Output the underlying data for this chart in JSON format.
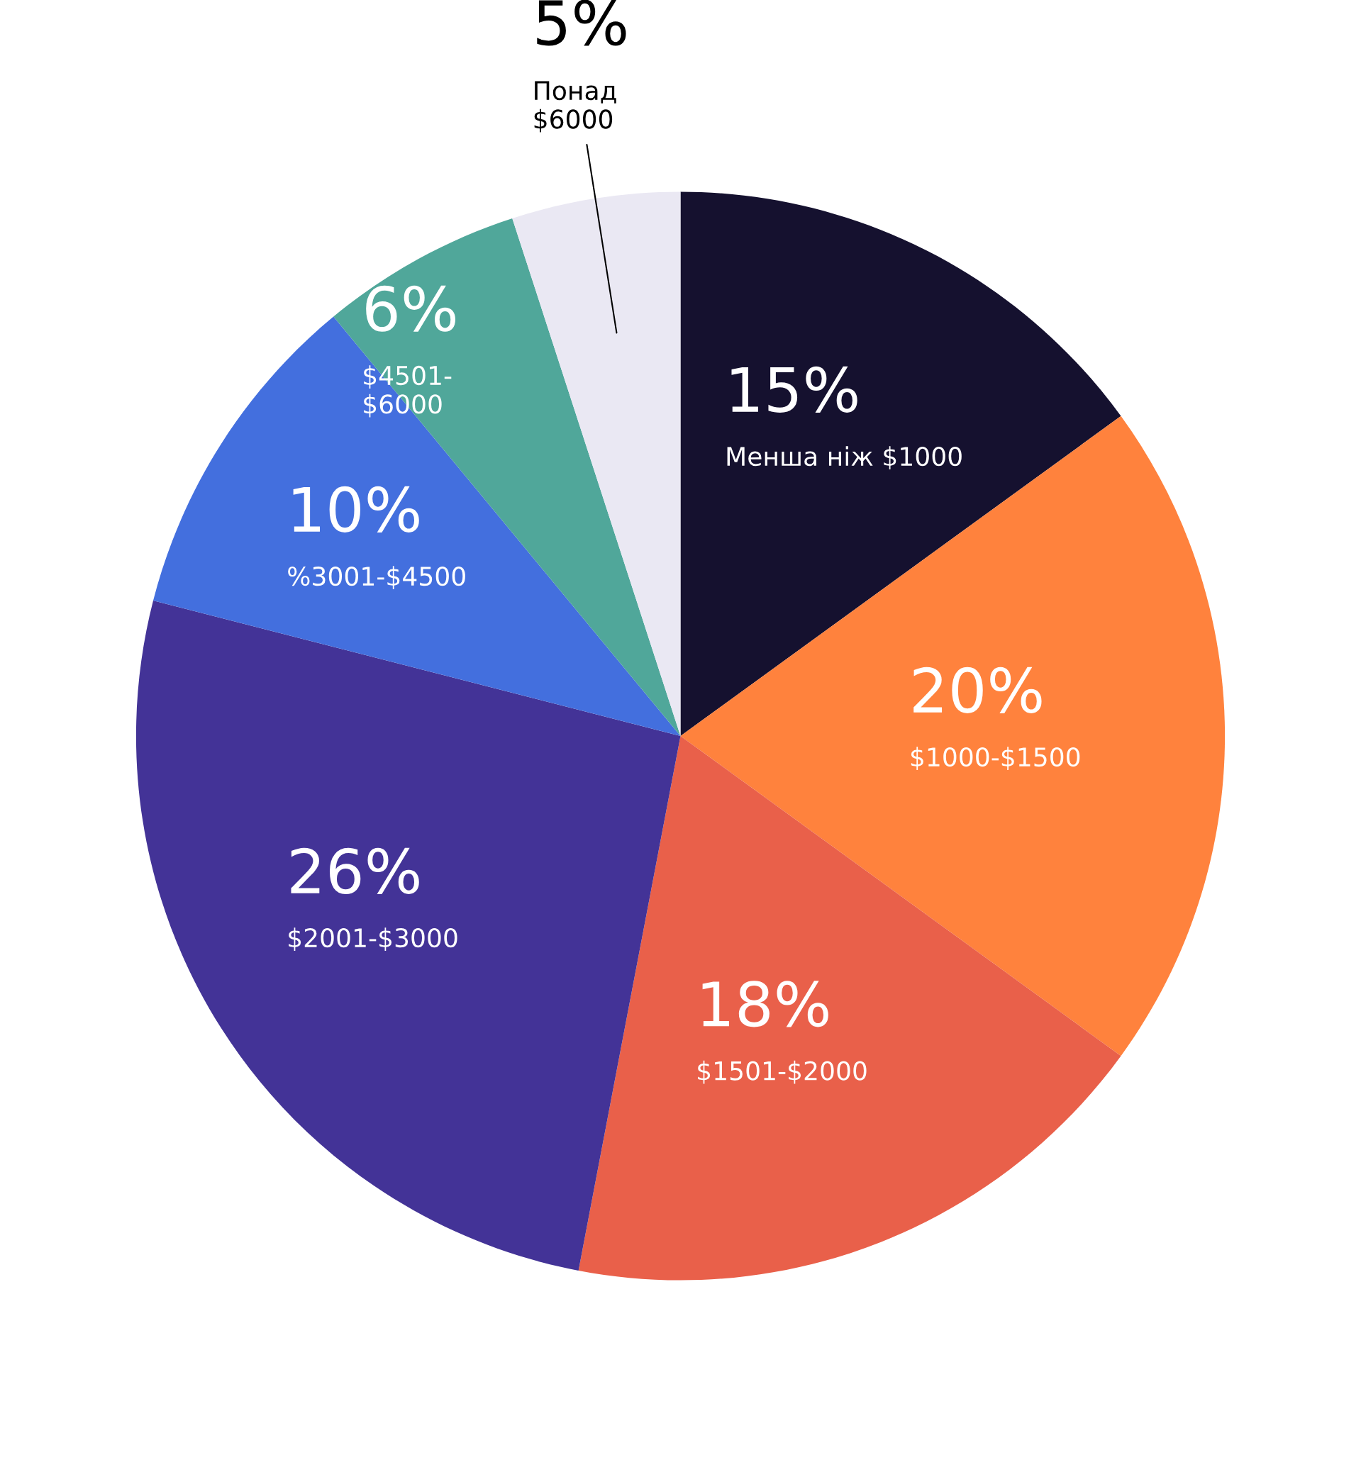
{
  "chart_data": {
    "type": "pie",
    "categories": [
      "Менша ніж $1000",
      "$1000-$1500",
      "$1501-$2000",
      "$2001-$3000",
      "%3001-$4500",
      "$4501-\n$6000",
      "Понад\n$6000"
    ],
    "values": [
      15,
      20,
      18,
      26,
      10,
      6,
      5
    ],
    "value_labels": [
      "15%",
      "20%",
      "18%",
      "26%",
      "10%",
      "6%",
      "5%"
    ],
    "colors": [
      "#15112f",
      "#ff823d",
      "#e9604a",
      "#433397",
      "#436fde",
      "#50a79a",
      "#eae8f3"
    ]
  }
}
